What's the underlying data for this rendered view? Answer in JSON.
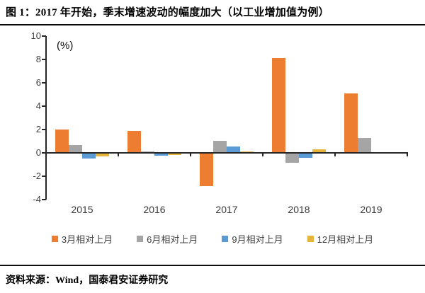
{
  "header": {
    "title": "图 1：2017 年开始，季末增速波动的幅度加大（以工业增加值为例）"
  },
  "chart_data": {
    "type": "bar",
    "title": "图 1：2017 年开始，季末增速波动的幅度加大（以工业增加值为例）",
    "unit_label": "(%)",
    "categories": [
      "2015",
      "2016",
      "2017",
      "2018",
      "2019"
    ],
    "series": [
      {
        "name": "3月相对上月",
        "color": "#ED7D31",
        "values": [
          2.0,
          1.9,
          -2.8,
          8.1,
          5.1
        ]
      },
      {
        "name": "6月相对上月",
        "color": "#A5A5A5",
        "values": [
          0.65,
          0.15,
          1.05,
          -0.8,
          1.3
        ]
      },
      {
        "name": "9月相对上月",
        "color": "#5B9BD5",
        "values": [
          -0.4,
          -0.2,
          0.55,
          -0.35,
          null
        ]
      },
      {
        "name": "12月相对上月",
        "color": "#E8B53C",
        "values": [
          -0.25,
          -0.15,
          0.1,
          0.3,
          null
        ]
      }
    ],
    "ylim": [
      -4,
      10
    ],
    "yticks": [
      10,
      8,
      6,
      4,
      2,
      0,
      -2,
      -4
    ],
    "xlabel": "",
    "ylabel": "(%)",
    "grid": false,
    "legend_position": "bottom"
  },
  "footer": {
    "source": "资料来源：Wind，国泰君安证券研究"
  },
  "colors": {
    "axis": "#262626",
    "tick_text": "#3f3f3f"
  }
}
